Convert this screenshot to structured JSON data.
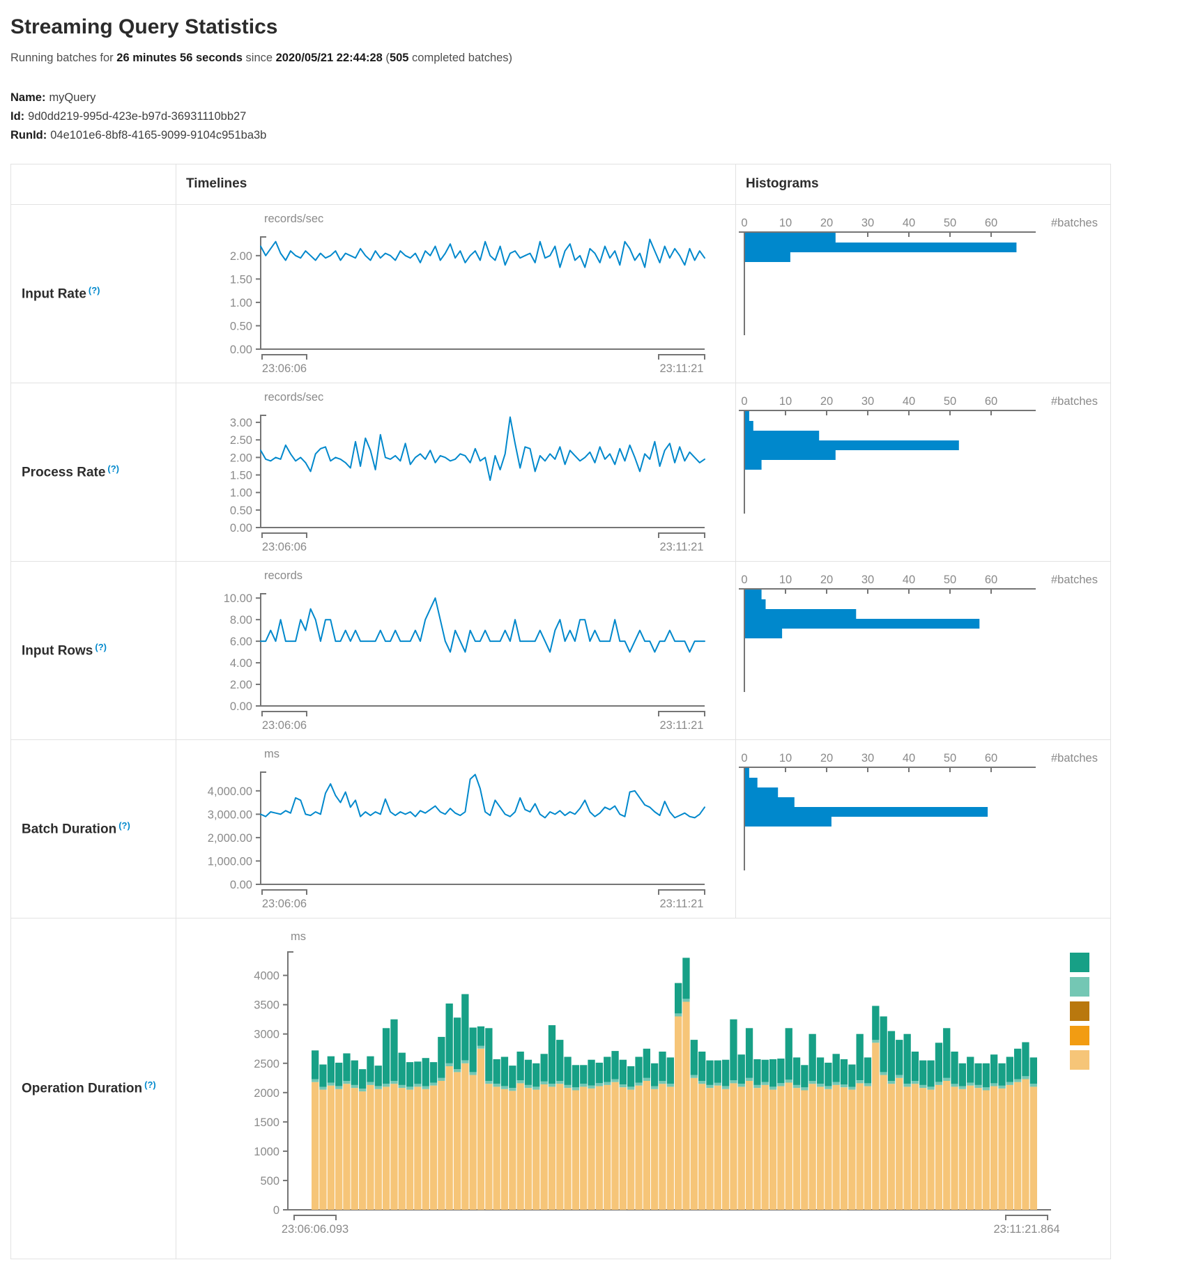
{
  "header": {
    "title": "Streaming Query Statistics",
    "running_prefix": "Running batches for ",
    "duration": "26 minutes 56 seconds",
    "since_word": " since ",
    "start_time": "2020/05/21 22:44:28",
    "open_paren": " (",
    "completed_count": "505",
    "completed_suffix": " completed batches)"
  },
  "meta": {
    "name_label": "Name:",
    "name_value": "myQuery",
    "id_label": "Id:",
    "id_value": "9d0dd219-995d-423e-b97d-36931110bb27",
    "runid_label": "RunId:",
    "runid_value": "04e101e6-8bf8-4165-9099-9104c951ba3b"
  },
  "table": {
    "timelines_header": "Timelines",
    "histograms_header": "Histograms",
    "help": "(?)",
    "rows": [
      {
        "label": "Input Rate"
      },
      {
        "label": "Process Rate"
      },
      {
        "label": "Input Rows"
      },
      {
        "label": "Batch Duration"
      },
      {
        "label": "Operation Duration"
      }
    ]
  },
  "colors": {
    "line_blue": "#0088cc",
    "hist_blue": "#0088cc",
    "axis_line": "#757575",
    "axis_text": "#8a8a8a",
    "teal": "#17a086",
    "seafoam": "#74c7b4",
    "dark_gold": "#b9780e",
    "orange": "#f29c12",
    "tan": "#f6c578"
  },
  "chart_data": [
    {
      "id": "input-rate-timeline",
      "type": "line",
      "unit": "records/sec",
      "x_start": "23:06:06",
      "x_end": "23:11:21",
      "ylim": [
        0,
        2.4
      ],
      "yticks": [
        0,
        0.5,
        1,
        1.5,
        2
      ],
      "ytick_labels": [
        "0.00",
        "0.50",
        "1.00",
        "1.50",
        "2.00"
      ],
      "values": [
        2.2,
        2.0,
        2.15,
        2.3,
        2.05,
        1.9,
        2.1,
        2.0,
        1.95,
        2.1,
        2.0,
        1.9,
        2.05,
        1.95,
        2.0,
        2.1,
        1.9,
        2.05,
        2.0,
        1.95,
        2.15,
        2.0,
        1.9,
        2.1,
        1.95,
        2.05,
        2.0,
        1.9,
        2.1,
        2.0,
        1.95,
        2.05,
        1.85,
        2.1,
        2.0,
        2.2,
        1.9,
        2.05,
        2.25,
        1.95,
        2.1,
        1.85,
        2.0,
        2.1,
        1.9,
        2.3,
        2.0,
        1.9,
        2.2,
        1.8,
        2.05,
        2.1,
        1.95,
        2.0,
        2.05,
        1.85,
        2.3,
        1.95,
        2.0,
        2.2,
        1.75,
        2.1,
        2.25,
        1.9,
        2.0,
        1.75,
        2.15,
        2.05,
        1.85,
        2.2,
        1.95,
        2.1,
        1.8,
        2.3,
        2.15,
        1.9,
        2.05,
        1.75,
        2.35,
        2.1,
        1.85,
        2.2,
        1.95,
        2.15,
        2.0,
        1.8,
        2.15,
        1.9,
        2.1,
        1.95
      ]
    },
    {
      "id": "input-rate-histogram",
      "type": "bar",
      "orientation": "horizontal",
      "xlabel": "#batches",
      "xticks": [
        0,
        10,
        20,
        30,
        40,
        50,
        60
      ],
      "xlim": [
        0,
        68
      ],
      "values": [
        22,
        66,
        11
      ]
    },
    {
      "id": "process-rate-timeline",
      "type": "line",
      "unit": "records/sec",
      "x_start": "23:06:06",
      "x_end": "23:11:21",
      "ylim": [
        0,
        3.2
      ],
      "yticks": [
        0,
        0.5,
        1,
        1.5,
        2,
        2.5,
        3
      ],
      "ytick_labels": [
        "0.00",
        "0.50",
        "1.00",
        "1.50",
        "2.00",
        "2.50",
        "3.00"
      ],
      "values": [
        2.2,
        1.95,
        1.9,
        2.0,
        1.95,
        2.35,
        2.1,
        1.9,
        2.0,
        1.85,
        1.6,
        2.1,
        2.25,
        2.3,
        1.9,
        2.0,
        1.95,
        1.85,
        1.7,
        2.45,
        1.75,
        2.55,
        2.2,
        1.65,
        2.65,
        2.0,
        1.95,
        2.05,
        1.9,
        2.4,
        1.8,
        2.0,
        2.1,
        1.95,
        2.2,
        1.85,
        2.05,
        2.0,
        1.9,
        1.95,
        2.1,
        2.05,
        1.85,
        2.25,
        1.9,
        2.0,
        1.35,
        2.05,
        1.65,
        2.1,
        3.15,
        2.4,
        1.7,
        2.3,
        2.25,
        1.6,
        2.05,
        1.9,
        2.1,
        1.95,
        2.3,
        1.8,
        2.2,
        2.05,
        1.9,
        2.0,
        2.15,
        1.85,
        2.3,
        1.95,
        2.1,
        1.8,
        2.25,
        1.9,
        2.35,
        2.0,
        1.6,
        2.1,
        1.95,
        2.45,
        1.75,
        2.2,
        2.4,
        1.85,
        2.3,
        1.9,
        2.15,
        2.0,
        1.85,
        1.95
      ]
    },
    {
      "id": "process-rate-histogram",
      "type": "bar",
      "orientation": "horizontal",
      "xlabel": "#batches",
      "xticks": [
        0,
        10,
        20,
        30,
        40,
        50,
        60
      ],
      "xlim": [
        0,
        68
      ],
      "values": [
        1,
        2,
        18,
        52,
        22,
        4
      ]
    },
    {
      "id": "input-rows-timeline",
      "type": "line",
      "unit": "records",
      "x_start": "23:06:06",
      "x_end": "23:11:21",
      "ylim": [
        0,
        10.4
      ],
      "yticks": [
        0,
        2,
        4,
        6,
        8,
        10
      ],
      "ytick_labels": [
        "0.00",
        "2.00",
        "4.00",
        "6.00",
        "8.00",
        "10.00"
      ],
      "values": [
        6,
        6,
        7,
        6,
        8,
        6,
        6,
        6,
        8,
        7,
        9,
        8,
        6,
        8,
        8,
        6,
        6,
        7,
        6,
        7,
        6,
        6,
        6,
        6,
        7,
        6,
        6,
        7,
        6,
        6,
        6,
        7,
        6,
        8,
        9,
        10,
        8,
        6,
        5,
        7,
        6,
        5,
        7,
        6,
        6,
        7,
        6,
        6,
        6,
        7,
        6,
        8,
        6,
        6,
        6,
        6,
        7,
        6,
        5,
        7,
        8,
        6,
        7,
        6,
        8,
        8,
        6,
        7,
        6,
        6,
        6,
        8,
        6,
        6,
        5,
        6,
        7,
        6,
        6,
        5,
        6,
        6,
        7,
        6,
        6,
        6,
        5,
        6,
        6,
        6
      ]
    },
    {
      "id": "input-rows-histogram",
      "type": "bar",
      "orientation": "horizontal",
      "xlabel": "#batches",
      "xticks": [
        0,
        10,
        20,
        30,
        40,
        50,
        60
      ],
      "xlim": [
        0,
        68
      ],
      "values": [
        4,
        5,
        27,
        57,
        9
      ]
    },
    {
      "id": "batch-duration-timeline",
      "type": "line",
      "unit": "ms",
      "x_start": "23:06:06",
      "x_end": "23:11:21",
      "ylim": [
        0,
        4800
      ],
      "yticks": [
        0,
        1000,
        2000,
        3000,
        4000
      ],
      "ytick_labels": [
        "0.00",
        "1,000.00",
        "2,000.00",
        "3,000.00",
        "4,000.00"
      ],
      "values": [
        3000,
        2900,
        3100,
        3050,
        3000,
        3150,
        3050,
        3700,
        3600,
        3000,
        2950,
        3100,
        3000,
        3900,
        4300,
        3800,
        3500,
        3950,
        3300,
        3600,
        2900,
        3100,
        2950,
        3100,
        3000,
        3650,
        3100,
        2950,
        3100,
        3000,
        3100,
        2900,
        3150,
        3050,
        3200,
        3350,
        3100,
        3000,
        3250,
        3050,
        2950,
        3100,
        4500,
        4700,
        4100,
        3100,
        2950,
        3600,
        3300,
        3000,
        2900,
        3100,
        3700,
        3200,
        3100,
        3450,
        3000,
        2850,
        3100,
        3000,
        3150,
        2950,
        3100,
        3000,
        3250,
        3600,
        3100,
        2900,
        3050,
        3300,
        3200,
        3350,
        3000,
        2900,
        3950,
        4000,
        3700,
        3400,
        3300,
        3100,
        2950,
        3550,
        3100,
        2850,
        2950,
        3050,
        2900,
        2850,
        3000,
        3300
      ]
    },
    {
      "id": "batch-duration-histogram",
      "type": "bar",
      "orientation": "horizontal",
      "xlabel": "#batches",
      "xticks": [
        0,
        10,
        20,
        30,
        40,
        50,
        60
      ],
      "xlim": [
        0,
        68
      ],
      "values": [
        1,
        3,
        8,
        12,
        59,
        21
      ]
    },
    {
      "id": "operation-duration",
      "type": "stacked-bar",
      "unit": "ms",
      "x_start": "23:06:06.093",
      "x_end": "23:11:21.864",
      "ylim": [
        0,
        4400
      ],
      "yticks": [
        0,
        500,
        1000,
        1500,
        2000,
        2500,
        3000,
        3500,
        4000
      ],
      "ytick_labels": [
        "0",
        "500",
        "1000",
        "1500",
        "2000",
        "2500",
        "3000",
        "3500",
        "4000"
      ],
      "stack_order_colors": [
        "tan",
        "seafoam",
        "teal"
      ],
      "legend_colors": [
        "teal",
        "seafoam",
        "dark_gold",
        "orange",
        "tan"
      ],
      "seafoam_ms": 50,
      "bars": [
        [
          2180,
          490
        ],
        [
          2050,
          380
        ],
        [
          2120,
          450
        ],
        [
          2060,
          400
        ],
        [
          2150,
          470
        ],
        [
          2080,
          420
        ],
        [
          2020,
          330
        ],
        [
          2130,
          440
        ],
        [
          2060,
          350
        ],
        [
          2100,
          950
        ],
        [
          2150,
          1050
        ],
        [
          2080,
          550
        ],
        [
          2050,
          420
        ],
        [
          2100,
          380
        ],
        [
          2060,
          480
        ],
        [
          2120,
          350
        ],
        [
          2200,
          700
        ],
        [
          2450,
          1020
        ],
        [
          2350,
          880
        ],
        [
          2500,
          1130
        ],
        [
          2300,
          760
        ],
        [
          2750,
          330
        ],
        [
          2150,
          900
        ],
        [
          2100,
          420
        ],
        [
          2060,
          500
        ],
        [
          2030,
          380
        ],
        [
          2160,
          490
        ],
        [
          2080,
          430
        ],
        [
          2050,
          400
        ],
        [
          2140,
          470
        ],
        [
          2100,
          1000
        ],
        [
          2150,
          700
        ],
        [
          2080,
          480
        ],
        [
          2040,
          380
        ],
        [
          2100,
          320
        ],
        [
          2070,
          440
        ],
        [
          2110,
          350
        ],
        [
          2130,
          430
        ],
        [
          2180,
          480
        ],
        [
          2090,
          420
        ],
        [
          2050,
          350
        ],
        [
          2120,
          440
        ],
        [
          2200,
          500
        ],
        [
          2060,
          390
        ],
        [
          2150,
          500
        ],
        [
          2100,
          450
        ],
        [
          3300,
          520
        ],
        [
          3550,
          700
        ],
        [
          2250,
          600
        ],
        [
          2150,
          500
        ],
        [
          2080,
          420
        ],
        [
          2120,
          380
        ],
        [
          2060,
          450
        ],
        [
          2160,
          1040
        ],
        [
          2100,
          500
        ],
        [
          2200,
          850
        ],
        [
          2080,
          440
        ],
        [
          2130,
          380
        ],
        [
          2050,
          470
        ],
        [
          2110,
          420
        ],
        [
          2170,
          880
        ],
        [
          2080,
          470
        ],
        [
          2040,
          380
        ],
        [
          2150,
          800
        ],
        [
          2100,
          450
        ],
        [
          2060,
          400
        ],
        [
          2130,
          480
        ],
        [
          2090,
          430
        ],
        [
          2050,
          380
        ],
        [
          2160,
          790
        ],
        [
          2110,
          440
        ],
        [
          2850,
          580
        ],
        [
          2300,
          950
        ],
        [
          2150,
          850
        ],
        [
          2250,
          600
        ],
        [
          2100,
          850
        ],
        [
          2150,
          500
        ],
        [
          2080,
          420
        ],
        [
          2050,
          450
        ],
        [
          2130,
          670
        ],
        [
          2200,
          850
        ],
        [
          2100,
          550
        ],
        [
          2060,
          390
        ],
        [
          2120,
          440
        ],
        [
          2080,
          370
        ],
        [
          2040,
          410
        ],
        [
          2110,
          490
        ],
        [
          2070,
          380
        ],
        [
          2130,
          430
        ],
        [
          2180,
          520
        ],
        [
          2230,
          580
        ],
        [
          2100,
          450
        ]
      ]
    }
  ]
}
